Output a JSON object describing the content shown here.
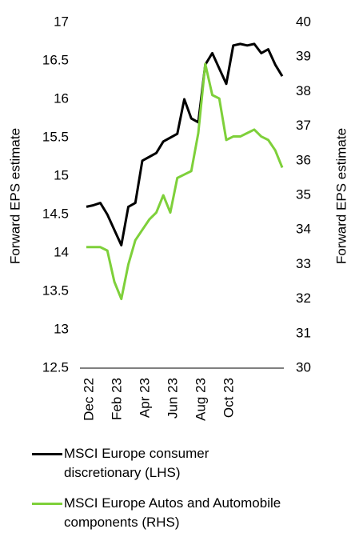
{
  "chart_data": {
    "type": "line",
    "y_label": "Forward EPS estimate",
    "y2_label": "Forward EPS estimate",
    "categories": [
      "Dec 22",
      null,
      null,
      null,
      "Feb 23",
      null,
      null,
      null,
      "Apr 23",
      null,
      null,
      null,
      "Jun 23",
      null,
      null,
      null,
      "Aug 23",
      null,
      null,
      null,
      "Oct 23",
      null,
      null,
      null,
      null,
      null,
      null,
      null,
      null
    ],
    "ylim": [
      12.5,
      17
    ],
    "yticks": [
      12.5,
      13,
      13.5,
      14,
      14.5,
      15,
      15.5,
      16,
      16.5,
      17
    ],
    "y2lim": [
      30,
      40
    ],
    "y2ticks": [
      30,
      31,
      32,
      33,
      34,
      35,
      36,
      37,
      38,
      39,
      40
    ],
    "series": [
      {
        "name": "MSCI Europe consumer discretionary (LHS)",
        "color": "#000000",
        "values": [
          14.6,
          14.62,
          14.65,
          14.5,
          14.3,
          14.1,
          14.6,
          14.65,
          15.2,
          15.25,
          15.3,
          15.45,
          15.5,
          15.55,
          16.0,
          15.75,
          15.7,
          16.45,
          16.6,
          16.4,
          16.2,
          16.7,
          16.72,
          16.7,
          16.72,
          16.6,
          16.65,
          16.45,
          16.3
        ]
      },
      {
        "name": "MSCI Europe Autos and Automobile components (RHS)",
        "color": "#7ed03a",
        "axis": "y2",
        "values": [
          33.5,
          33.5,
          33.5,
          33.4,
          32.5,
          32.0,
          33.0,
          33.7,
          34.0,
          34.3,
          34.5,
          35.0,
          34.5,
          35.5,
          35.6,
          35.7,
          36.8,
          38.8,
          37.9,
          37.8,
          36.6,
          36.7,
          36.7,
          36.8,
          36.9,
          36.7,
          36.6,
          36.3,
          35.8
        ]
      }
    ]
  }
}
